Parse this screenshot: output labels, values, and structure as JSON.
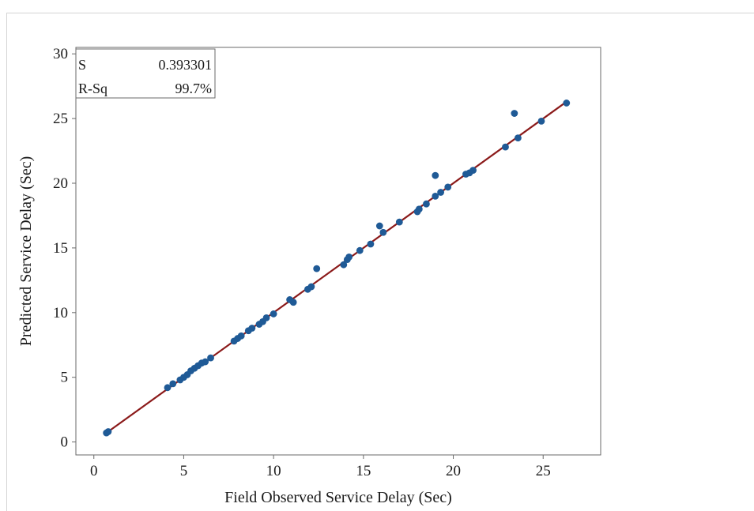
{
  "chart_data": {
    "type": "scatter",
    "title": "",
    "xlabel": "Field Observed Service Delay (Sec)",
    "ylabel": "Predicted Service Delay (Sec)",
    "xlim": [
      -1,
      28.2
    ],
    "ylim": [
      -1,
      30.5
    ],
    "xticks": [
      0,
      5,
      10,
      15,
      20,
      25
    ],
    "yticks": [
      0,
      5,
      10,
      15,
      20,
      25,
      30
    ],
    "grid": false,
    "point_color": "#1f5a96",
    "fit_line_color": "#8b1a1a",
    "fit_line": {
      "x": [
        0.7,
        26.3
      ],
      "y": [
        0.7,
        26.3
      ]
    },
    "stats": {
      "rows": [
        {
          "label": "S",
          "value": "0.393301"
        },
        {
          "label": "R-Sq",
          "value": "99.7%"
        }
      ]
    },
    "points": {
      "x": [
        0.7,
        0.8,
        4.1,
        4.4,
        4.8,
        5.0,
        5.2,
        5.4,
        5.6,
        5.8,
        6.0,
        6.2,
        6.5,
        7.8,
        8.0,
        8.2,
        8.6,
        8.8,
        9.2,
        9.4,
        9.6,
        10.0,
        10.9,
        11.1,
        11.9,
        12.1,
        12.4,
        13.9,
        14.1,
        14.2,
        14.8,
        15.4,
        15.9,
        16.1,
        17.0,
        18.0,
        18.1,
        18.5,
        19.0,
        19.0,
        19.3,
        19.7,
        20.7,
        20.9,
        21.1,
        22.9,
        23.4,
        23.6,
        24.9,
        26.3
      ],
      "y": [
        0.7,
        0.8,
        4.2,
        4.5,
        4.8,
        5.0,
        5.2,
        5.5,
        5.7,
        5.9,
        6.1,
        6.2,
        6.5,
        7.8,
        8.0,
        8.2,
        8.6,
        8.8,
        9.1,
        9.3,
        9.6,
        9.9,
        11.0,
        10.8,
        11.8,
        12.0,
        13.4,
        13.7,
        14.1,
        14.3,
        14.8,
        15.3,
        16.7,
        16.2,
        17.0,
        17.8,
        18.0,
        18.4,
        20.6,
        19.0,
        19.3,
        19.7,
        20.7,
        20.8,
        21.0,
        22.8,
        25.4,
        23.5,
        24.8,
        26.2
      ]
    }
  }
}
